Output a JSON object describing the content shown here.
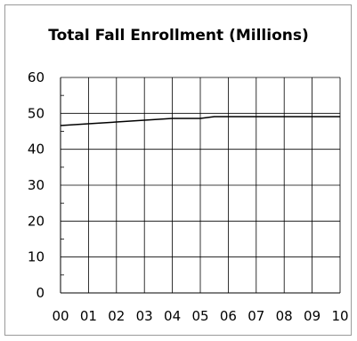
{
  "chart_data": {
    "type": "line",
    "title": "Total Fall Enrollment (Millions)",
    "xlabel": "",
    "ylabel": "",
    "categories": [
      "00",
      "01",
      "02",
      "03",
      "04",
      "05",
      "06",
      "07",
      "08",
      "09",
      "10"
    ],
    "x": [
      0,
      1,
      2,
      3,
      4,
      5,
      5.5,
      6,
      7,
      8,
      9,
      10
    ],
    "values": [
      46.6,
      47.1,
      47.6,
      48.1,
      48.6,
      48.6,
      49.1,
      49.1,
      49.1,
      49.1,
      49.1,
      49.1
    ],
    "ylim": [
      0,
      60
    ],
    "xlim": [
      0,
      10
    ],
    "yticks": [
      "0",
      "10",
      "20",
      "30",
      "40",
      "50",
      "60"
    ],
    "grid": true,
    "legend": "none",
    "line_color": "#000000",
    "grid_color": "#000000"
  }
}
